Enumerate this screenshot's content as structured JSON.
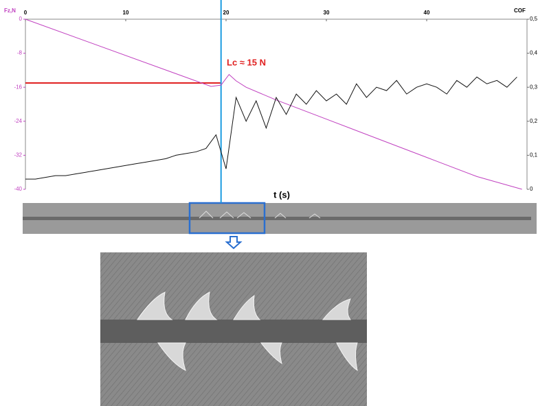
{
  "chart_data": {
    "type": "line",
    "y_label": "Fz,N",
    "y2_label": "COF",
    "x_label": "t (s)",
    "annotation": "Lc ≈ 15 N",
    "xlim": [
      0,
      50
    ],
    "xticks": [
      0,
      10,
      20,
      30,
      40
    ],
    "ylim": [
      -40,
      0
    ],
    "yticks": [
      0,
      -8,
      -16,
      -24,
      -32,
      -40
    ],
    "y2lim": [
      0,
      0.5
    ],
    "y2ticks": [
      {
        "value": 0.5,
        "label": "0,5"
      },
      {
        "value": 0.4,
        "label": "0,4"
      },
      {
        "value": 0.3,
        "label": "0,3"
      },
      {
        "value": 0.2,
        "label": "0,2"
      },
      {
        "value": 0.1,
        "label": "0,1"
      },
      0
    ],
    "lc_marker": {
      "t": 19.5,
      "fz": -15
    },
    "series": [
      {
        "name": "Fz,N",
        "color": "#c040c0",
        "x": [
          0,
          18.5,
          19.5,
          20.3,
          21,
          22,
          25,
          30,
          35,
          40,
          45,
          49.5
        ],
        "values": [
          0,
          -15.8,
          -15.5,
          -13,
          -14.5,
          -16,
          -19,
          -23.5,
          -28,
          -32.5,
          -37,
          -40
        ]
      },
      {
        "name": "COF",
        "axis": "y2",
        "color": "#111111",
        "x": [
          0,
          1,
          2,
          3,
          4,
          5,
          6,
          7,
          8,
          9,
          10,
          11,
          12,
          13,
          14,
          15,
          16,
          17,
          18,
          19,
          20,
          21,
          22,
          23,
          24,
          25,
          26,
          27,
          28,
          29,
          30,
          31,
          32,
          33,
          34,
          35,
          36,
          37,
          38,
          39,
          40,
          41,
          42,
          43,
          44,
          45,
          46,
          47,
          48,
          49
        ],
        "values": [
          0.03,
          0.03,
          0.035,
          0.04,
          0.04,
          0.045,
          0.05,
          0.055,
          0.06,
          0.065,
          0.07,
          0.075,
          0.08,
          0.085,
          0.09,
          0.1,
          0.105,
          0.11,
          0.12,
          0.16,
          0.06,
          0.27,
          0.2,
          0.26,
          0.18,
          0.27,
          0.22,
          0.28,
          0.25,
          0.29,
          0.26,
          0.28,
          0.25,
          0.31,
          0.27,
          0.3,
          0.29,
          0.32,
          0.28,
          0.3,
          0.31,
          0.3,
          0.28,
          0.32,
          0.3,
          0.33,
          0.31,
          0.32,
          0.3,
          0.33
        ]
      }
    ]
  }
}
